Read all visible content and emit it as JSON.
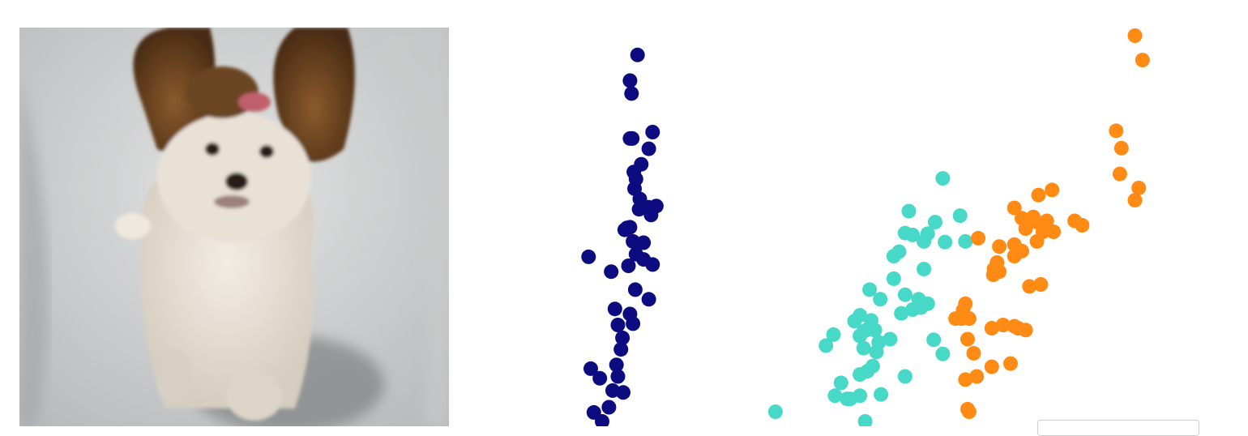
{
  "photo": {
    "subject": "dog-photo"
  },
  "chart_data": {
    "type": "scatter",
    "title": "",
    "xlabel": "",
    "ylabel": "",
    "grid": false,
    "legend": "bottom-right",
    "xlim": [
      0,
      10
    ],
    "ylim": [
      0,
      6
    ],
    "series": [
      {
        "color": "#0c0c80",
        "points": [
          [
            1.9,
            5.7
          ],
          [
            1.8,
            5.3
          ],
          [
            1.82,
            5.1
          ],
          [
            1.8,
            4.4
          ],
          [
            1.83,
            4.4
          ],
          [
            2.1,
            4.5
          ],
          [
            2.05,
            4.24
          ],
          [
            1.95,
            4.0
          ],
          [
            1.85,
            3.88
          ],
          [
            1.88,
            3.77
          ],
          [
            1.86,
            3.62
          ],
          [
            1.93,
            3.46
          ],
          [
            2.05,
            3.33
          ],
          [
            2.15,
            3.35
          ],
          [
            2.08,
            3.21
          ],
          [
            1.92,
            3.3
          ],
          [
            1.8,
            3.02
          ],
          [
            1.73,
            2.98
          ],
          [
            1.76,
            3.01
          ],
          [
            1.84,
            2.8
          ],
          [
            1.98,
            2.78
          ],
          [
            1.88,
            2.6
          ],
          [
            1.98,
            2.52
          ],
          [
            2.1,
            2.44
          ],
          [
            1.78,
            2.42
          ],
          [
            1.25,
            2.56
          ],
          [
            1.55,
            2.33
          ],
          [
            1.87,
            2.05
          ],
          [
            2.05,
            1.9
          ],
          [
            1.6,
            1.75
          ],
          [
            1.8,
            1.67
          ],
          [
            1.64,
            1.5
          ],
          [
            1.84,
            1.52
          ],
          [
            1.7,
            1.3
          ],
          [
            1.68,
            1.12
          ],
          [
            1.28,
            0.82
          ],
          [
            1.64,
            0.7
          ],
          [
            1.62,
            0.88
          ],
          [
            1.4,
            0.67
          ],
          [
            1.57,
            0.48
          ],
          [
            1.71,
            0.45
          ],
          [
            1.32,
            0.14
          ],
          [
            1.52,
            0.22
          ],
          [
            1.43,
            0.0
          ]
        ]
      },
      {
        "color": "#48d8c8",
        "points": [
          [
            5.95,
            3.78
          ],
          [
            5.5,
            3.27
          ],
          [
            5.85,
            3.1
          ],
          [
            6.18,
            3.2
          ],
          [
            5.45,
            2.93
          ],
          [
            5.55,
            2.9
          ],
          [
            5.75,
            2.92
          ],
          [
            5.7,
            2.8
          ],
          [
            5.98,
            2.79
          ],
          [
            6.25,
            2.8
          ],
          [
            5.37,
            2.64
          ],
          [
            5.3,
            2.57
          ],
          [
            5.7,
            2.37
          ],
          [
            5.3,
            2.22
          ],
          [
            4.98,
            2.05
          ],
          [
            5.45,
            1.97
          ],
          [
            5.12,
            1.9
          ],
          [
            5.63,
            1.9
          ],
          [
            5.75,
            1.83
          ],
          [
            5.66,
            1.77
          ],
          [
            5.55,
            1.74
          ],
          [
            5.4,
            1.68
          ],
          [
            4.85,
            1.65
          ],
          [
            4.78,
            1.56
          ],
          [
            5.0,
            1.57
          ],
          [
            4.95,
            1.43
          ],
          [
            4.9,
            1.4
          ],
          [
            5.05,
            1.42
          ],
          [
            4.5,
            1.35
          ],
          [
            4.85,
            1.33
          ],
          [
            5.25,
            1.28
          ],
          [
            5.1,
            1.23
          ],
          [
            4.4,
            1.18
          ],
          [
            4.9,
            1.14
          ],
          [
            5.07,
            1.08
          ],
          [
            5.83,
            1.27
          ],
          [
            5.95,
            1.05
          ],
          [
            5.02,
            0.86
          ],
          [
            4.95,
            0.78
          ],
          [
            4.85,
            0.73
          ],
          [
            5.45,
            0.7
          ],
          [
            4.6,
            0.6
          ],
          [
            4.52,
            0.4
          ],
          [
            4.68,
            0.35
          ],
          [
            4.72,
            0.35
          ],
          [
            4.85,
            0.4
          ],
          [
            5.13,
            0.42
          ],
          [
            3.73,
            0.15
          ],
          [
            4.92,
            0.0
          ]
        ]
      },
      {
        "color": "#ff8a14",
        "points": [
          [
            8.5,
            6.0
          ],
          [
            8.6,
            5.62
          ],
          [
            8.25,
            4.52
          ],
          [
            8.32,
            4.25
          ],
          [
            8.3,
            3.85
          ],
          [
            8.55,
            3.63
          ],
          [
            7.4,
            3.6
          ],
          [
            7.22,
            3.52
          ],
          [
            6.9,
            3.32
          ],
          [
            7.0,
            3.16
          ],
          [
            7.15,
            3.18
          ],
          [
            7.2,
            3.1
          ],
          [
            7.3,
            3.05
          ],
          [
            7.33,
            3.12
          ],
          [
            7.05,
            3.0
          ],
          [
            7.28,
            2.95
          ],
          [
            7.42,
            2.95
          ],
          [
            7.2,
            2.8
          ],
          [
            7.7,
            3.12
          ],
          [
            7.8,
            3.05
          ],
          [
            6.42,
            2.85
          ],
          [
            6.7,
            2.72
          ],
          [
            6.9,
            2.75
          ],
          [
            7.0,
            2.65
          ],
          [
            6.9,
            2.57
          ],
          [
            6.67,
            2.47
          ],
          [
            6.63,
            2.37
          ],
          [
            6.7,
            2.33
          ],
          [
            6.62,
            2.28
          ],
          [
            7.1,
            2.1
          ],
          [
            7.25,
            2.13
          ],
          [
            8.5,
            3.44
          ],
          [
            6.25,
            1.83
          ],
          [
            6.22,
            1.73
          ],
          [
            6.2,
            1.6
          ],
          [
            6.12,
            1.6
          ],
          [
            6.3,
            1.6
          ],
          [
            6.6,
            1.45
          ],
          [
            6.75,
            1.5
          ],
          [
            6.9,
            1.48
          ],
          [
            6.95,
            1.45
          ],
          [
            7.05,
            1.42
          ],
          [
            6.28,
            1.28
          ],
          [
            6.36,
            1.06
          ],
          [
            6.25,
            0.65
          ],
          [
            6.4,
            0.7
          ],
          [
            6.6,
            0.85
          ],
          [
            6.85,
            0.9
          ],
          [
            6.28,
            0.19
          ],
          [
            6.3,
            0.15
          ]
        ]
      }
    ]
  }
}
